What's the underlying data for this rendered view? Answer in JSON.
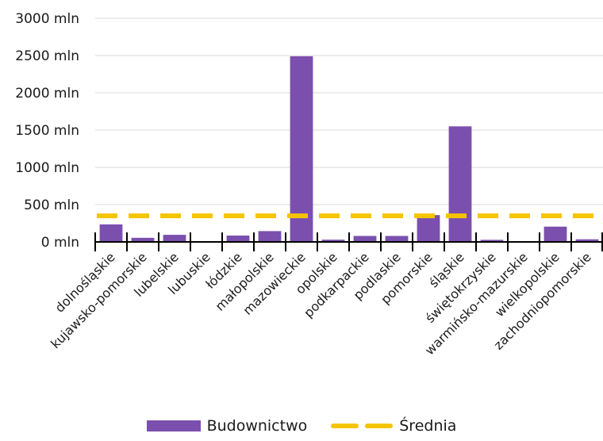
{
  "chart_data": {
    "type": "bar",
    "categories": [
      "dolnośląskie",
      "kujawsko-pomorskie",
      "lubelskie",
      "lubuskie",
      "łódzkie",
      "małopolskie",
      "mazowieckie",
      "opolskie",
      "podkarpackie",
      "podlaskie",
      "pomorskie",
      "śląskie",
      "świętokrzyskie",
      "warmińsko-mazurskie",
      "wielkopolskie",
      "zachodniopomorskie"
    ],
    "series": [
      {
        "name": "Budownictwo",
        "type": "bar",
        "color": "#7b4fae",
        "values": [
          235,
          55,
          95,
          0,
          85,
          145,
          2490,
          30,
          80,
          80,
          360,
          1550,
          28,
          8,
          205,
          35
        ]
      },
      {
        "name": "Średnia",
        "type": "line",
        "style": "dashed",
        "color": "#f5c400",
        "values": [
          350,
          350,
          350,
          350,
          350,
          350,
          350,
          350,
          350,
          350,
          350,
          350,
          350,
          350,
          350,
          350
        ]
      }
    ],
    "ylim": [
      0,
      3000
    ],
    "yticks": [
      0,
      500,
      1000,
      1500,
      2000,
      2500,
      3000
    ],
    "ytick_suffix": " mln",
    "grid": true,
    "legend": "bottom"
  }
}
